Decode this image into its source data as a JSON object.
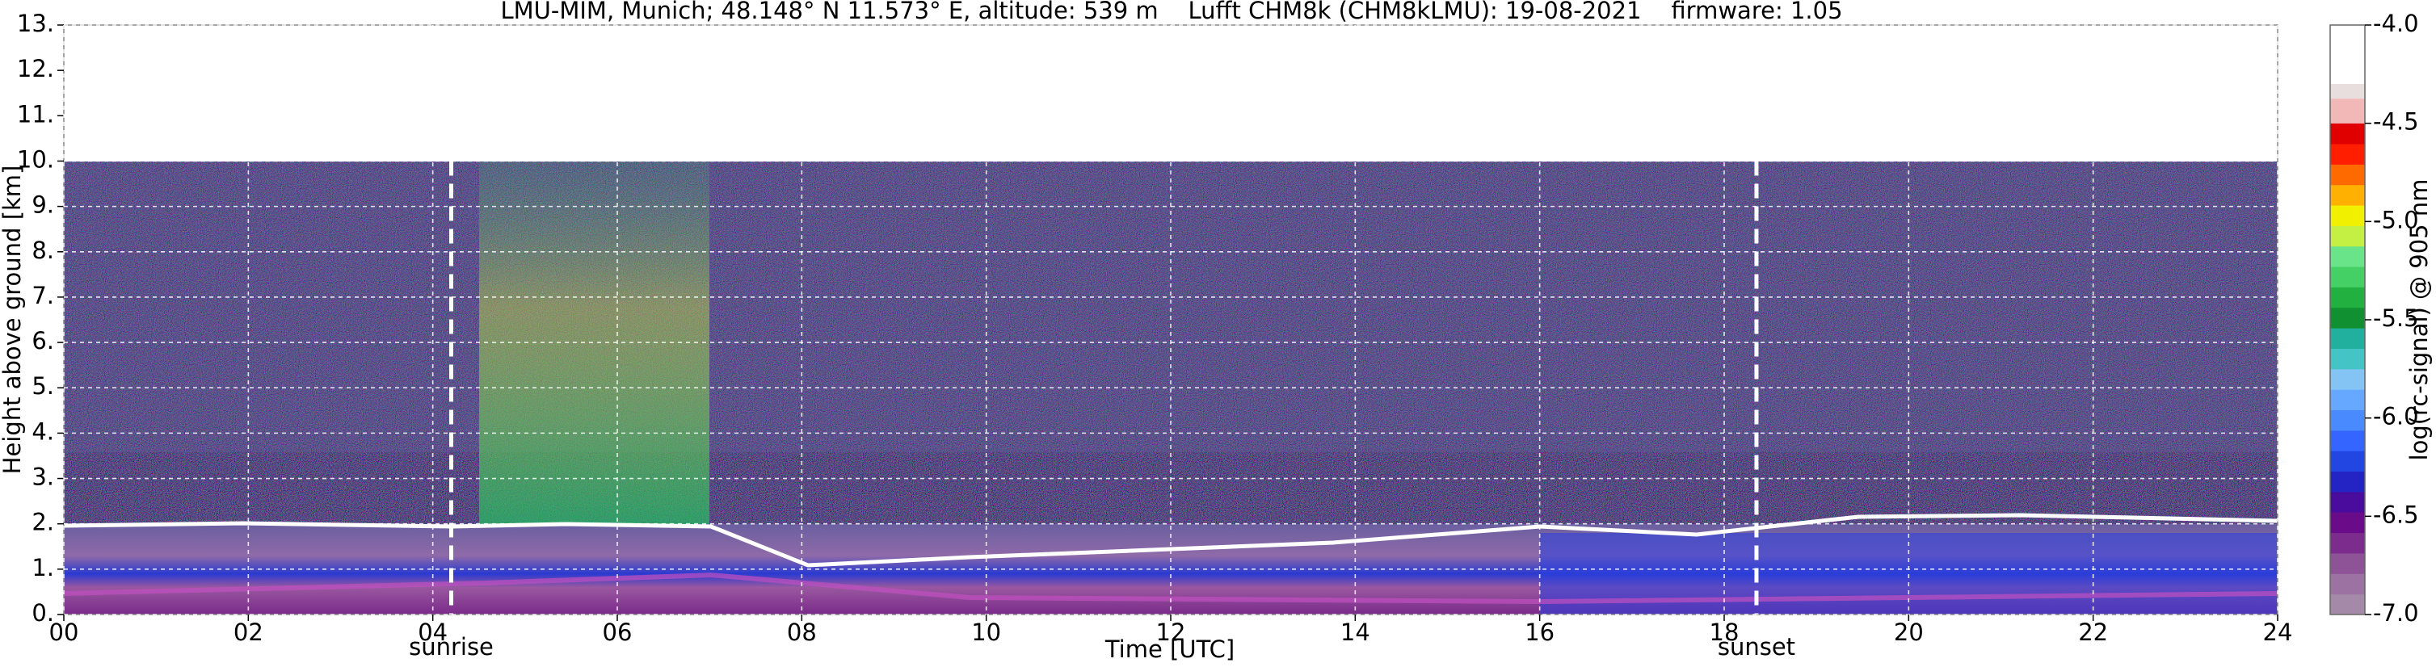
{
  "chart_data": {
    "type": "heatmap",
    "title": "LMU-MIM, Munich; 48.148° N 11.573° E, altitude: 539 m    Lufft CHM8k (CHM8kLMU): 19-08-2021    firmware: 1.05",
    "x_label": "Time [UTC]",
    "y_label": "Height above ground [km]",
    "xlim": [
      0,
      24
    ],
    "xticks": [
      {
        "value": 0,
        "label": "00"
      },
      {
        "value": 2,
        "label": "02"
      },
      {
        "value": 4,
        "label": "04"
      },
      {
        "value": 6,
        "label": "06"
      },
      {
        "value": 8,
        "label": "08"
      },
      {
        "value": 10,
        "label": "10"
      },
      {
        "value": 12,
        "label": "12"
      },
      {
        "value": 14,
        "label": "14"
      },
      {
        "value": 16,
        "label": "16"
      },
      {
        "value": 18,
        "label": "18"
      },
      {
        "value": 20,
        "label": "20"
      },
      {
        "value": 22,
        "label": "22"
      },
      {
        "value": 24,
        "label": "24"
      }
    ],
    "ylim": [
      0,
      13
    ],
    "yticks": [
      {
        "value": 0,
        "label": "0."
      },
      {
        "value": 1,
        "label": "1."
      },
      {
        "value": 2,
        "label": "2."
      },
      {
        "value": 3,
        "label": "3."
      },
      {
        "value": 4,
        "label": "4."
      },
      {
        "value": 5,
        "label": "5."
      },
      {
        "value": 6,
        "label": "6."
      },
      {
        "value": 7,
        "label": "7."
      },
      {
        "value": 8,
        "label": "8."
      },
      {
        "value": 9,
        "label": "9."
      },
      {
        "value": 10,
        "label": "10."
      },
      {
        "value": 11,
        "label": "11."
      },
      {
        "value": 12,
        "label": "12."
      },
      {
        "value": 13,
        "label": "13."
      }
    ],
    "grid": true,
    "annotations": [
      {
        "label": "sunrise",
        "x": 4.2
      },
      {
        "label": "sunset",
        "x": 18.35
      }
    ],
    "colorbar": {
      "label": "log(rc-signal) @ 905 nm",
      "lim": [
        -7,
        -4
      ],
      "ticks": [
        {
          "value": -7,
          "label": "-7.0"
        },
        {
          "value": -6.5,
          "label": "-6.5"
        },
        {
          "value": -6,
          "label": "-6.0"
        },
        {
          "value": -5.5,
          "label": "-5.5"
        },
        {
          "value": -5,
          "label": "-5.0"
        },
        {
          "value": -4.5,
          "label": "-4.5"
        },
        {
          "value": -4,
          "label": "-4.0"
        }
      ],
      "colors": [
        "#a48aa8",
        "#9c72a2",
        "#8e5296",
        "#7c2c8c",
        "#6a0c8a",
        "#4a0c9c",
        "#2424c4",
        "#2246e2",
        "#3466ff",
        "#4a8aff",
        "#66a8ff",
        "#84c4f4",
        "#44c4c4",
        "#22b09e",
        "#109030",
        "#22b040",
        "#44d064",
        "#6ae488",
        "#c4f044",
        "#f0f000",
        "#ffb000",
        "#ff6a00",
        "#ff1e00",
        "#e00000"
      ]
    }
  }
}
